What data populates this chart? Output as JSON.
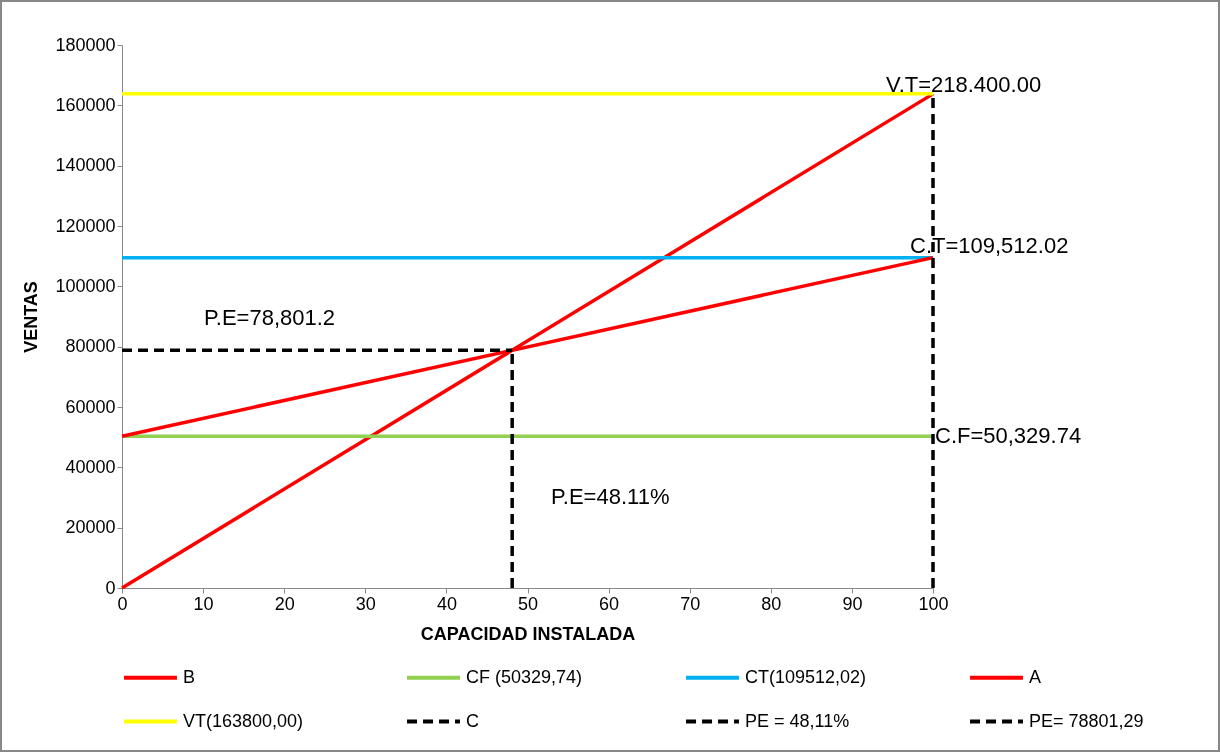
{
  "chart_data": {
    "type": "line",
    "xlabel": "CAPACIDAD INSTALADA",
    "ylabel": "VENTAS",
    "xlim": [
      0,
      100
    ],
    "xticks": [
      0,
      10,
      20,
      30,
      40,
      50,
      60,
      70,
      80,
      90,
      100
    ],
    "ylim": [
      0,
      180000
    ],
    "yticks": [
      0,
      20000,
      40000,
      60000,
      80000,
      100000,
      120000,
      140000,
      160000,
      180000
    ],
    "grid": false,
    "legend": "bottom",
    "marker": "none",
    "series": [
      {
        "name": "B",
        "color": "#ff0000",
        "x": [
          0,
          100
        ],
        "values": [
          0,
          163800
        ]
      },
      {
        "name": "CF (50329,74)",
        "color": "#92d050",
        "x": [
          0,
          100
        ],
        "values": [
          50329.74,
          50329.74
        ]
      },
      {
        "name": "CT(109512,02)",
        "color": "#00b0f0",
        "x": [
          0,
          100
        ],
        "values": [
          109512.02,
          109512.02
        ]
      },
      {
        "name": "A",
        "color": "#ff0000",
        "x": [
          0,
          100
        ],
        "values": [
          50329.74,
          109512.02
        ]
      },
      {
        "name": "VT(163800,00)",
        "color": "#ffff00",
        "x": [
          0,
          100
        ],
        "values": [
          163800,
          163800
        ]
      },
      {
        "name": "C",
        "color": "#000000",
        "line_style": "dashed",
        "x": [
          100,
          100
        ],
        "values": [
          0,
          163800
        ]
      },
      {
        "name": "PE = 48,11%",
        "color": "#000000",
        "line_style": "dashed",
        "x": [
          48.11,
          48.11
        ],
        "values": [
          0,
          78801.29
        ]
      },
      {
        "name": "PE= 78801,29",
        "color": "#000000",
        "line_style": "dashed",
        "x": [
          0,
          48.11
        ],
        "values": [
          78801.29,
          78801.29
        ]
      }
    ],
    "annotations": [
      "V.T=218.400.00",
      "C.T=109,512.02",
      "P.E=78,801.2",
      "C.F=50,329.74",
      "P.E=48.11%"
    ]
  }
}
